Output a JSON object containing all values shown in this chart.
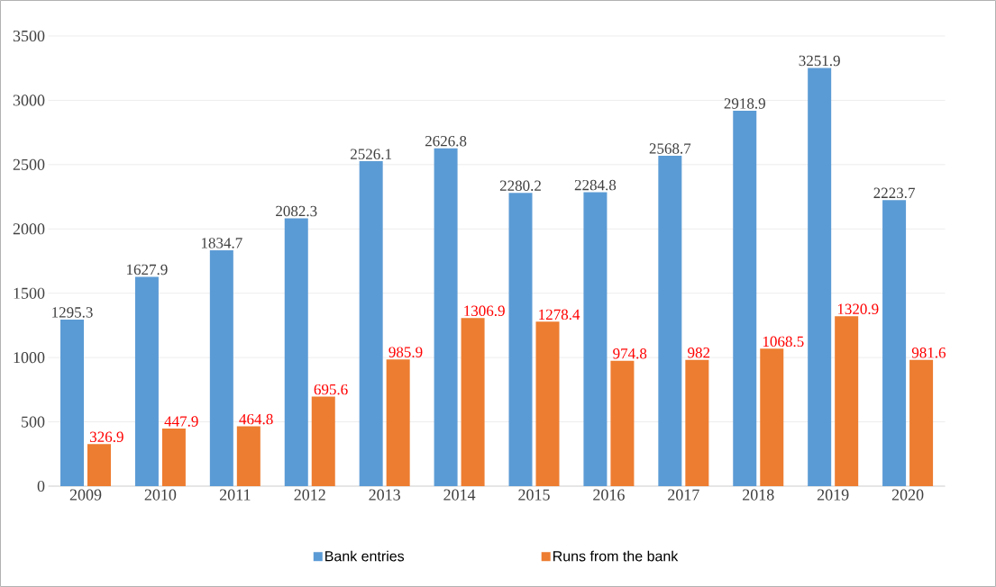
{
  "chart_data": {
    "type": "bar",
    "categories": [
      "2009",
      "2010",
      "2011",
      "2012",
      "2013",
      "2014",
      "2015",
      "2016",
      "2017",
      "2018",
      "2019",
      "2020"
    ],
    "series": [
      {
        "name": "Bank entries",
        "color": "#5b9bd5",
        "values": [
          1295.3,
          1627.9,
          1834.7,
          2082.3,
          2526.1,
          2626.8,
          2280.2,
          2284.8,
          2568.7,
          2918.9,
          3251.9,
          2223.7
        ]
      },
      {
        "name": "Runs from the bank",
        "color": "#ed7d31",
        "values": [
          326.9,
          447.9,
          464.8,
          695.6,
          985.9,
          1306.9,
          1278.4,
          974.8,
          982,
          1068.5,
          1320.9,
          981.6
        ]
      }
    ],
    "ylim": [
      0,
      3500
    ],
    "yticks": [
      0,
      500,
      1000,
      1500,
      2000,
      2500,
      3000,
      3500
    ],
    "grid": "y",
    "legend": "bottom",
    "data_labels": true
  }
}
